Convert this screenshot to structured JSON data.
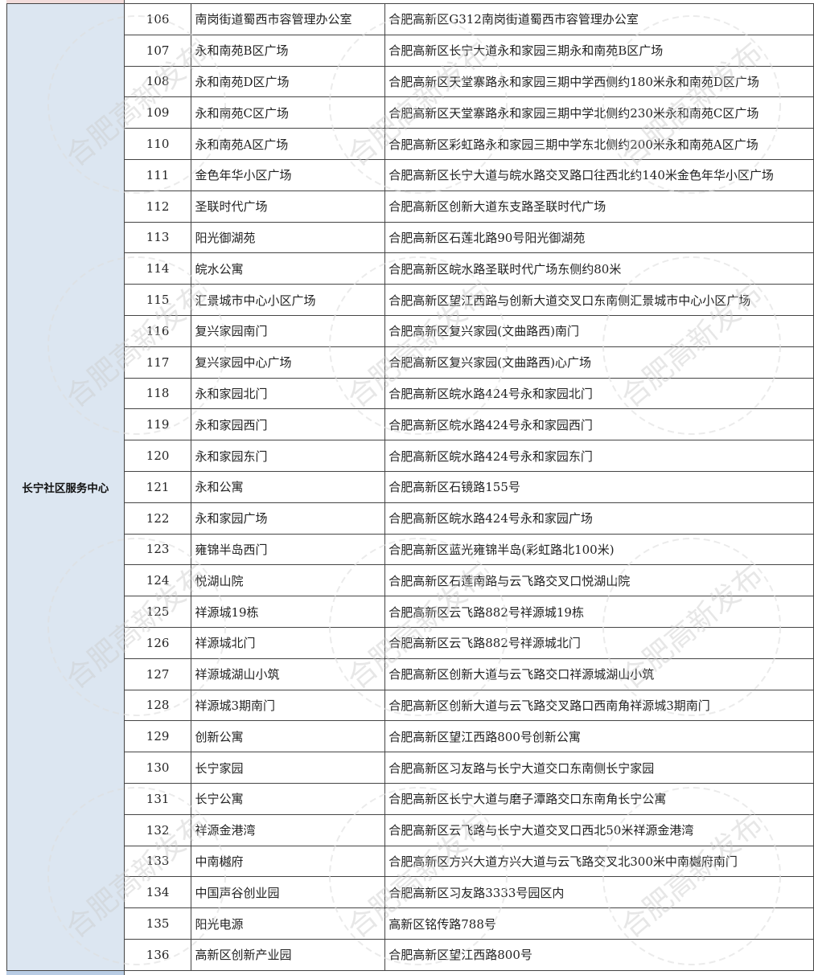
{
  "group_label": "长宁社区服务中心",
  "watermark_text": "合肥高新发布",
  "colors": {
    "group_bg": "#dce6f1",
    "top_cell": "#f2dcdb",
    "bottom_cell": "#b8cce4"
  },
  "rows": [
    {
      "no": "106",
      "name": "南岗街道蜀西市容管理办公室",
      "address": "合肥高新区G312南岗街道蜀西市容管理办公室"
    },
    {
      "no": "107",
      "name": "永和南苑B区广场",
      "address": "合肥高新区长宁大道永和家园三期永和南苑B区广场"
    },
    {
      "no": "108",
      "name": "永和南苑D区广场",
      "address": "合肥高新区天堂寨路永和家园三期中学西侧约180米永和南苑D区广场"
    },
    {
      "no": "109",
      "name": "永和南苑C区广场",
      "address": "合肥高新区天堂寨路永和家园三期中学北侧约230米永和南苑C区广场"
    },
    {
      "no": "110",
      "name": "永和南苑A区广场",
      "address": "合肥高新区彩虹路永和家园三期中学东北侧约200米永和南苑A区广场"
    },
    {
      "no": "111",
      "name": "金色年华小区广场",
      "address": "合肥高新区长宁大道与皖水路交叉路口往西北约140米金色年华小区广场"
    },
    {
      "no": "112",
      "name": "圣联时代广场",
      "address": "合肥高新区创新大道东支路圣联时代广场"
    },
    {
      "no": "113",
      "name": "阳光御湖苑",
      "address": "合肥高新区石莲北路90号阳光御湖苑"
    },
    {
      "no": "114",
      "name": "皖水公寓",
      "address": "合肥高新区皖水路圣联时代广场东侧约80米"
    },
    {
      "no": "115",
      "name": "汇景城市中心小区广场",
      "address": "合肥高新区望江西路与创新大道交叉口东南侧汇景城市中心小区广场"
    },
    {
      "no": "116",
      "name": "复兴家园南门",
      "address": "合肥高新区复兴家园(文曲路西)南门"
    },
    {
      "no": "117",
      "name": "复兴家园中心广场",
      "address": "合肥高新区复兴家园(文曲路西)心广场"
    },
    {
      "no": "118",
      "name": "永和家园北门",
      "address": "合肥高新区皖水路424号永和家园北门"
    },
    {
      "no": "119",
      "name": "永和家园西门",
      "address": "合肥高新区皖水路424号永和家园西门"
    },
    {
      "no": "120",
      "name": "永和家园东门",
      "address": "合肥高新区皖水路424号永和家园东门"
    },
    {
      "no": "121",
      "name": "永和公寓",
      "address": "合肥高新区石镜路155号"
    },
    {
      "no": "122",
      "name": "永和家园广场",
      "address": "合肥高新区皖水路424号永和家园广场"
    },
    {
      "no": "123",
      "name": "雍锦半岛西门",
      "address": "合肥高新区蓝光雍锦半岛(彩虹路北100米)"
    },
    {
      "no": "124",
      "name": "悦湖山院",
      "address": "合肥高新区石莲南路与云飞路交叉口悦湖山院"
    },
    {
      "no": "125",
      "name": "祥源城19栋",
      "address": "合肥高新区云飞路882号祥源城19栋"
    },
    {
      "no": "126",
      "name": "祥源城北门",
      "address": "合肥高新区云飞路882号祥源城北门"
    },
    {
      "no": "127",
      "name": "祥源城湖山小筑",
      "address": "合肥高新区创新大道与云飞路交口祥源城湖山小筑"
    },
    {
      "no": "128",
      "name": "祥源城3期南门",
      "address": "合肥高新区创新大道与云飞路交叉路口西南角祥源城3期南门"
    },
    {
      "no": "129",
      "name": "创新公寓",
      "address": "合肥高新区望江西路800号创新公寓"
    },
    {
      "no": "130",
      "name": "长宁家园",
      "address": "合肥高新区习友路与长宁大道交口东南侧长宁家园"
    },
    {
      "no": "131",
      "name": "长宁公寓",
      "address": "合肥高新区长宁大道与磨子潭路交口东南角长宁公寓"
    },
    {
      "no": "132",
      "name": "祥源金港湾",
      "address": "合肥高新区云飞路与长宁大道交叉口西北50米祥源金港湾"
    },
    {
      "no": "133",
      "name": "中南樾府",
      "address": "合肥高新区方兴大道方兴大道与云飞路交叉北300米中南樾府南门"
    },
    {
      "no": "134",
      "name": "中国声谷创业园",
      "address": "合肥高新区习友路3333号园区内"
    },
    {
      "no": "135",
      "name": "阳光电源",
      "address": "高新区铭传路788号"
    },
    {
      "no": "136",
      "name": "高新区创新产业园",
      "address": "合肥高新区望江西路800号"
    }
  ]
}
